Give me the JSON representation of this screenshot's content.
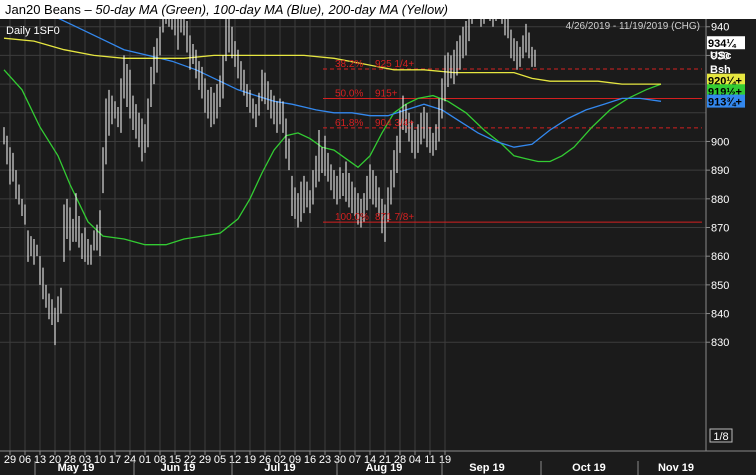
{
  "title": {
    "symbol": "Jan20 Beans",
    "description": " – 50-day MA (Green), 100-day MA (Blue), 200-day MA (Yellow)"
  },
  "header": {
    "interval_label": "Daily 1SF0",
    "date_range": "4/26/2019 - 11/19/2019 (CHG)"
  },
  "price_axis": {
    "title_lines": [
      "Price",
      "USc",
      "Bsh"
    ],
    "ticks": [
      "940",
      "930",
      "900",
      "890",
      "880",
      "870",
      "860",
      "850",
      "840",
      "830"
    ],
    "scale_label": "1/8"
  },
  "date_axis": {
    "day_labels": [
      "29",
      "06",
      "13",
      "20",
      "28",
      "03",
      "10",
      "17",
      "24",
      "01",
      "08",
      "15",
      "22",
      "29",
      "05",
      "12",
      "19",
      "26",
      "02",
      "09",
      "16",
      "23",
      "30",
      "07",
      "14",
      "21",
      "28",
      "04",
      "11",
      "19"
    ],
    "month_labels": [
      "May 19",
      "Jun 19",
      "Jul 19",
      "Aug 19",
      "Sep 19",
      "Oct 19",
      "Nov 19"
    ]
  },
  "markers": {
    "last_price": "934¼",
    "ma_yellow": "920¼+",
    "ma_green": "919½+",
    "ma_blue": "913¾+"
  },
  "fib_labels": [
    {
      "pct": "0.0%",
      "price": "958 1/4+"
    },
    {
      "pct": "38.2%",
      "price": "925 1/4+"
    },
    {
      "pct": "50.0%",
      "price": "915+"
    },
    {
      "pct": "61.8%",
      "price": "904 3/4+"
    },
    {
      "pct": "100.0%",
      "price": "871 7/8+"
    }
  ],
  "colors": {
    "background": "#1b1b1b",
    "grid": "#3c3c3c",
    "bars": "#ffffff",
    "fib": "#d42020",
    "ma50": "#33cc33",
    "ma100": "#3388ee",
    "ma200": "#e6e640"
  },
  "chart_data": {
    "type": "line",
    "title": "Jan20 Beans",
    "ylim": [
      825,
      961
    ],
    "fib_levels": [
      958.25,
      925.25,
      915,
      904.75,
      871.875
    ],
    "last_price": 934.25,
    "series": [
      {
        "name": "50-day MA (Green)",
        "values": [
          [
            0,
            925
          ],
          [
            6,
            918
          ],
          [
            12,
            905
          ],
          [
            18,
            895
          ],
          [
            22,
            885
          ],
          [
            28,
            872
          ],
          [
            33,
            867
          ],
          [
            40,
            866
          ],
          [
            47,
            864
          ],
          [
            54,
            864
          ],
          [
            60,
            866
          ],
          [
            66,
            867
          ],
          [
            72,
            868
          ],
          [
            78,
            873
          ],
          [
            82,
            880
          ],
          [
            86,
            889
          ],
          [
            90,
            897
          ],
          [
            94,
            902
          ],
          [
            98,
            903
          ],
          [
            102,
            901
          ],
          [
            106,
            898
          ],
          [
            110,
            897
          ],
          [
            114,
            894
          ],
          [
            118,
            891
          ],
          [
            122,
            895
          ],
          [
            126,
            903
          ],
          [
            130,
            910
          ],
          [
            134,
            913
          ],
          [
            138,
            915
          ],
          [
            143,
            916
          ],
          [
            148,
            914
          ],
          [
            154,
            910
          ],
          [
            160,
            904
          ],
          [
            166,
            899
          ],
          [
            170,
            895
          ],
          [
            174,
            894
          ],
          [
            178,
            893
          ],
          [
            182,
            893
          ],
          [
            186,
            895
          ],
          [
            190,
            898
          ],
          [
            196,
            905
          ],
          [
            202,
            911
          ],
          [
            208,
            915
          ],
          [
            214,
            918
          ],
          [
            219,
            920
          ]
        ]
      },
      {
        "name": "100-day MA (Blue)",
        "values": [
          [
            0,
            951
          ],
          [
            8,
            948
          ],
          [
            16,
            944
          ],
          [
            24,
            940
          ],
          [
            32,
            936
          ],
          [
            40,
            932
          ],
          [
            48,
            930
          ],
          [
            56,
            928
          ],
          [
            64,
            925
          ],
          [
            72,
            921
          ],
          [
            78,
            918
          ],
          [
            84,
            916
          ],
          [
            90,
            914
          ],
          [
            96,
            913
          ],
          [
            100,
            912
          ],
          [
            104,
            911
          ],
          [
            110,
            910
          ],
          [
            116,
            910
          ],
          [
            122,
            909
          ],
          [
            128,
            909
          ],
          [
            134,
            911
          ],
          [
            140,
            913
          ],
          [
            146,
            911
          ],
          [
            152,
            907
          ],
          [
            158,
            903
          ],
          [
            164,
            900
          ],
          [
            170,
            898
          ],
          [
            176,
            899
          ],
          [
            182,
            904
          ],
          [
            188,
            908
          ],
          [
            194,
            911
          ],
          [
            200,
            913
          ],
          [
            206,
            915
          ],
          [
            212,
            915
          ],
          [
            219,
            914
          ]
        ]
      },
      {
        "name": "200-day MA (Yellow)",
        "values": [
          [
            0,
            936
          ],
          [
            10,
            935
          ],
          [
            20,
            932
          ],
          [
            30,
            930
          ],
          [
            40,
            929
          ],
          [
            50,
            929
          ],
          [
            60,
            929
          ],
          [
            70,
            930
          ],
          [
            80,
            930
          ],
          [
            90,
            930
          ],
          [
            100,
            930
          ],
          [
            110,
            929
          ],
          [
            120,
            927
          ],
          [
            130,
            925
          ],
          [
            140,
            925
          ],
          [
            150,
            924
          ],
          [
            160,
            924
          ],
          [
            170,
            924
          ],
          [
            176,
            922
          ],
          [
            182,
            921
          ],
          [
            190,
            921
          ],
          [
            198,
            921
          ],
          [
            206,
            920
          ],
          [
            214,
            920
          ],
          [
            219,
            920
          ]
        ]
      }
    ],
    "ohlc": [
      [
        0,
        905,
        899
      ],
      [
        1,
        902,
        892
      ],
      [
        2,
        898,
        885
      ],
      [
        3,
        896,
        886
      ],
      [
        4,
        890,
        880
      ],
      [
        5,
        885,
        878
      ],
      [
        6,
        880,
        874
      ],
      [
        7,
        878,
        871
      ],
      [
        8,
        869,
        858
      ],
      [
        9,
        867,
        860
      ],
      [
        10,
        866,
        857
      ],
      [
        11,
        864,
        860
      ],
      [
        12,
        860,
        850
      ],
      [
        13,
        856,
        845
      ],
      [
        14,
        850,
        842
      ],
      [
        15,
        847,
        838
      ],
      [
        16,
        845,
        836
      ],
      [
        17,
        842,
        829
      ],
      [
        18,
        846,
        837
      ],
      [
        19,
        849,
        840
      ],
      [
        20,
        878,
        858
      ],
      [
        21,
        880,
        866
      ],
      [
        22,
        877,
        862
      ],
      [
        23,
        873,
        865
      ],
      [
        24,
        882,
        865
      ],
      [
        25,
        874,
        863
      ],
      [
        26,
        868,
        859
      ],
      [
        27,
        870,
        858
      ],
      [
        28,
        866,
        857
      ],
      [
        29,
        864,
        857
      ],
      [
        30,
        869,
        862
      ],
      [
        31,
        871,
        862
      ],
      [
        32,
        876,
        860
      ],
      [
        33,
        898,
        882
      ],
      [
        34,
        915,
        892
      ],
      [
        35,
        918,
        902
      ],
      [
        36,
        916,
        906
      ],
      [
        37,
        914,
        908
      ],
      [
        38,
        912,
        905
      ],
      [
        39,
        922,
        903
      ],
      [
        40,
        930,
        915
      ],
      [
        41,
        927,
        912
      ],
      [
        42,
        925,
        908
      ],
      [
        43,
        916,
        904
      ],
      [
        44,
        913,
        901
      ],
      [
        45,
        910,
        898
      ],
      [
        46,
        908,
        893
      ],
      [
        47,
        906,
        896
      ],
      [
        48,
        915,
        898
      ],
      [
        49,
        926,
        912
      ],
      [
        50,
        933,
        920
      ],
      [
        51,
        936,
        924
      ],
      [
        52,
        940,
        930
      ],
      [
        53,
        952,
        938
      ],
      [
        54,
        955,
        941
      ],
      [
        55,
        950,
        940
      ],
      [
        56,
        948,
        939
      ],
      [
        57,
        946,
        937
      ],
      [
        58,
        944,
        932
      ],
      [
        59,
        946,
        938
      ],
      [
        60,
        949,
        937
      ],
      [
        61,
        942,
        931
      ],
      [
        62,
        937,
        925
      ],
      [
        63,
        934,
        927
      ],
      [
        64,
        932,
        922
      ],
      [
        65,
        928,
        918
      ],
      [
        66,
        926,
        915
      ],
      [
        67,
        922,
        910
      ],
      [
        68,
        918,
        908
      ],
      [
        69,
        919,
        905
      ],
      [
        70,
        917,
        906
      ],
      [
        71,
        920,
        908
      ],
      [
        72,
        923,
        912
      ],
      [
        73,
        930,
        915
      ],
      [
        74,
        944,
        928
      ],
      [
        75,
        945,
        931
      ],
      [
        76,
        940,
        929
      ],
      [
        77,
        935,
        926
      ],
      [
        78,
        932,
        922
      ],
      [
        79,
        928,
        918
      ],
      [
        80,
        925,
        916
      ],
      [
        81,
        920,
        912
      ],
      [
        82,
        918,
        910
      ],
      [
        83,
        915,
        908
      ],
      [
        84,
        913,
        905
      ],
      [
        85,
        917,
        909
      ],
      [
        86,
        925,
        914
      ],
      [
        87,
        924,
        913
      ],
      [
        88,
        921,
        911
      ],
      [
        89,
        918,
        908
      ],
      [
        90,
        916,
        906
      ],
      [
        91,
        914,
        903
      ],
      [
        92,
        915,
        906
      ],
      [
        93,
        914,
        903
      ],
      [
        94,
        908,
        894
      ],
      [
        95,
        901,
        890
      ],
      [
        96,
        888,
        874
      ],
      [
        97,
        884,
        873
      ],
      [
        98,
        882,
        870
      ],
      [
        99,
        886,
        872
      ],
      [
        100,
        888,
        875
      ],
      [
        101,
        886,
        877
      ],
      [
        102,
        883,
        875
      ],
      [
        103,
        890,
        878
      ],
      [
        104,
        895,
        884
      ],
      [
        105,
        904,
        886
      ],
      [
        106,
        898,
        889
      ],
      [
        107,
        902,
        888
      ],
      [
        108,
        896,
        886
      ],
      [
        109,
        892,
        883
      ],
      [
        110,
        890,
        880
      ],
      [
        111,
        888,
        878
      ],
      [
        112,
        891,
        880
      ],
      [
        113,
        889,
        881
      ],
      [
        114,
        893,
        879
      ],
      [
        115,
        889,
        877
      ],
      [
        116,
        886,
        875
      ],
      [
        117,
        884,
        874
      ],
      [
        118,
        882,
        871
      ],
      [
        119,
        880,
        870
      ],
      [
        120,
        882,
        872
      ],
      [
        121,
        888,
        876
      ],
      [
        122,
        892,
        880
      ],
      [
        123,
        890,
        878
      ],
      [
        124,
        888,
        877
      ],
      [
        125,
        884,
        874
      ],
      [
        126,
        880,
        868
      ],
      [
        127,
        878,
        865
      ],
      [
        128,
        884,
        872
      ],
      [
        129,
        890,
        878
      ],
      [
        130,
        897,
        884
      ],
      [
        131,
        902,
        889
      ],
      [
        132,
        911,
        896
      ],
      [
        133,
        916,
        904
      ],
      [
        134,
        913,
        903
      ],
      [
        135,
        910,
        900
      ],
      [
        136,
        907,
        896
      ],
      [
        137,
        904,
        894
      ],
      [
        138,
        906,
        896
      ],
      [
        139,
        910,
        899
      ],
      [
        140,
        912,
        901
      ],
      [
        141,
        910,
        898
      ],
      [
        142,
        905,
        896
      ],
      [
        143,
        903,
        895
      ],
      [
        144,
        906,
        897
      ],
      [
        145,
        915,
        900
      ],
      [
        146,
        922,
        908
      ],
      [
        147,
        930,
        914
      ],
      [
        148,
        931,
        919
      ],
      [
        149,
        930,
        922
      ],
      [
        150,
        932,
        920
      ],
      [
        151,
        935,
        923
      ],
      [
        152,
        937,
        925
      ],
      [
        153,
        940,
        929
      ],
      [
        154,
        942,
        930
      ],
      [
        155,
        947,
        935
      ],
      [
        156,
        953,
        941
      ],
      [
        157,
        958,
        944
      ],
      [
        158,
        955,
        946
      ],
      [
        159,
        952,
        940
      ],
      [
        160,
        950,
        941
      ],
      [
        161,
        957,
        945
      ],
      [
        162,
        953,
        942
      ],
      [
        163,
        951,
        940
      ],
      [
        164,
        948,
        942
      ],
      [
        165,
        954,
        946
      ],
      [
        166,
        950,
        941
      ],
      [
        167,
        948,
        937
      ],
      [
        168,
        946,
        936
      ],
      [
        169,
        939,
        929
      ],
      [
        170,
        936,
        928
      ],
      [
        171,
        935,
        925
      ],
      [
        172,
        933,
        926
      ],
      [
        173,
        937,
        929
      ],
      [
        174,
        941,
        931
      ],
      [
        175,
        938,
        929
      ],
      [
        176,
        933,
        926
      ],
      [
        177,
        932,
        926
      ]
    ]
  }
}
